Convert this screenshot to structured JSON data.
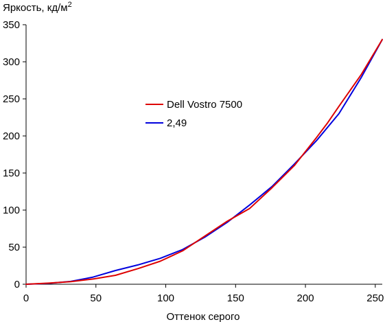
{
  "chart_data": {
    "type": "line",
    "title": "",
    "ylabel": "Яркость, кд/м",
    "ylabel_superscript": "2",
    "xlabel": "Оттенок серого",
    "xlim": [
      0,
      255
    ],
    "ylim": [
      0,
      350
    ],
    "x_ticks": [
      0,
      50,
      100,
      150,
      200,
      250
    ],
    "y_ticks": [
      0,
      50,
      100,
      150,
      200,
      250,
      300,
      350
    ],
    "grid": false,
    "legend_position": "center-left",
    "series": [
      {
        "name": "Dell Vostro 7500",
        "color": "#dd0000",
        "x": [
          0,
          16,
          32,
          48,
          64,
          80,
          96,
          112,
          128,
          144,
          160,
          176,
          192,
          208,
          216,
          224,
          240,
          255
        ],
        "y": [
          0,
          1.5,
          3.5,
          7,
          12,
          21,
          31,
          45,
          65,
          85,
          102,
          130,
          160,
          198,
          218,
          240,
          283,
          330
        ]
      },
      {
        "name": "2,49",
        "color": "#0000dd",
        "x": [
          0,
          16,
          32,
          48,
          64,
          80,
          96,
          112,
          128,
          144,
          160,
          176,
          192,
          208,
          224,
          240,
          255
        ],
        "y": [
          0,
          1.1,
          3.8,
          9.6,
          18.5,
          26.0,
          34.9,
          46.8,
          63.5,
          83.5,
          106.8,
          131.7,
          161.9,
          193.8,
          230.1,
          279.0,
          330
        ]
      }
    ]
  }
}
